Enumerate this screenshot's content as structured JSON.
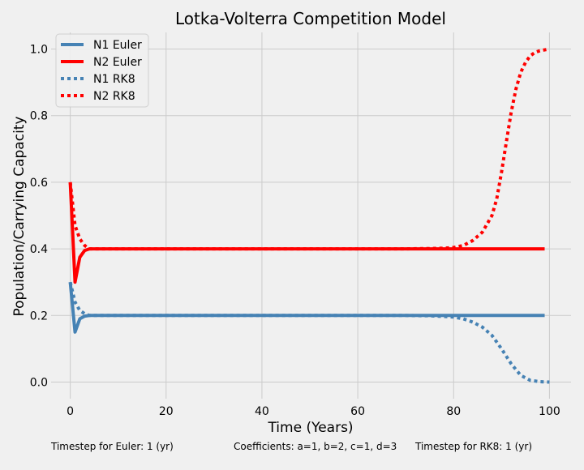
{
  "chart_data": {
    "type": "line",
    "title": "Lotka-Volterra Competition Model",
    "xlabel": "Time (Years)",
    "ylabel": "Population/Carrying Capacity",
    "xlim": [
      -4,
      104.5
    ],
    "ylim": [
      -0.05,
      1.05
    ],
    "xticks": [
      0,
      20,
      40,
      60,
      80,
      100
    ],
    "yticks": [
      0.0,
      0.2,
      0.4,
      0.6,
      0.8,
      1.0
    ],
    "grid": true,
    "legend_position": "top-left",
    "series": [
      {
        "name": "N1 Euler",
        "color": "#4682b4",
        "style": "solid",
        "x": [
          0,
          1,
          2,
          3,
          4,
          99
        ],
        "y": [
          0.3,
          0.15,
          0.19,
          0.198,
          0.2,
          0.2
        ]
      },
      {
        "name": "N2 Euler",
        "color": "#ff0000",
        "style": "solid",
        "x": [
          0,
          1,
          2,
          3,
          4,
          99
        ],
        "y": [
          0.6,
          0.3,
          0.375,
          0.395,
          0.4,
          0.4
        ]
      },
      {
        "name": "N1 RK8",
        "color": "#4682b4",
        "style": "dotted",
        "x": [
          0,
          1,
          2,
          3,
          4,
          10,
          20,
          30,
          40,
          50,
          60,
          70,
          75,
          78,
          80,
          82,
          84,
          86,
          88,
          90,
          92,
          94,
          96,
          98,
          100
        ],
        "y": [
          0.3,
          0.24,
          0.215,
          0.205,
          0.2,
          0.2,
          0.2,
          0.2,
          0.2,
          0.2,
          0.2,
          0.2,
          0.199,
          0.197,
          0.195,
          0.19,
          0.18,
          0.165,
          0.14,
          0.1,
          0.055,
          0.02,
          0.005,
          0.001,
          0.0
        ]
      },
      {
        "name": "N2 RK8",
        "color": "#ff0000",
        "style": "dotted",
        "x": [
          0,
          1,
          2,
          3,
          4,
          10,
          20,
          30,
          40,
          50,
          60,
          70,
          75,
          78,
          80,
          82,
          84,
          86,
          88,
          89,
          90,
          91,
          92,
          93,
          94,
          95,
          96,
          97,
          98,
          100
        ],
        "y": [
          0.6,
          0.47,
          0.43,
          0.41,
          0.4,
          0.4,
          0.4,
          0.4,
          0.4,
          0.4,
          0.4,
          0.4,
          0.401,
          0.402,
          0.404,
          0.41,
          0.425,
          0.45,
          0.5,
          0.55,
          0.63,
          0.72,
          0.81,
          0.88,
          0.93,
          0.96,
          0.98,
          0.99,
          0.995,
          1.0
        ]
      }
    ]
  },
  "footer": {
    "euler_timestep": "Timestep for Euler: 1 (yr)",
    "coefficients": "Coefficients: a=1, b=2, c=1, d=3",
    "rk8_timestep": "Timestep for RK8: 1 (yr)"
  }
}
